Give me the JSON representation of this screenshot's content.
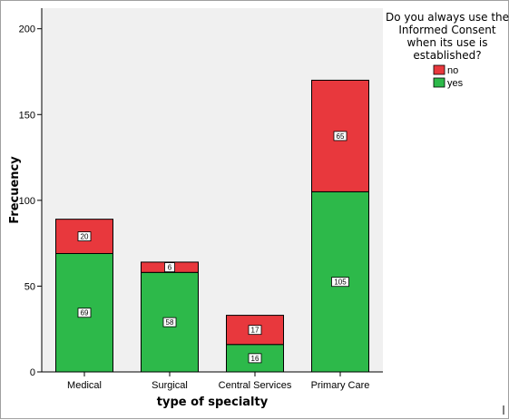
{
  "chart_data": {
    "type": "bar",
    "stacked": true,
    "categories": [
      "Medical",
      "Surgical",
      "Central Services",
      "Primary Care"
    ],
    "series": [
      {
        "name": "yes",
        "values": [
          69,
          58,
          16,
          105
        ],
        "color": "#2db94a"
      },
      {
        "name": "no",
        "values": [
          20,
          6,
          17,
          65
        ],
        "color": "#e8383d"
      }
    ],
    "xlabel": "type of specialty",
    "ylabel": "Frecuency",
    "ylim": [
      0,
      212
    ],
    "yticks": [
      0,
      50,
      100,
      150,
      200
    ],
    "grid": false,
    "legend": {
      "title_lines": [
        "Do you always use the",
        "Informed Consent",
        "when its use is",
        "established?"
      ],
      "entries": [
        "no",
        "yes"
      ],
      "placement": "top-right"
    },
    "plot_background": "#f0f0f0"
  }
}
